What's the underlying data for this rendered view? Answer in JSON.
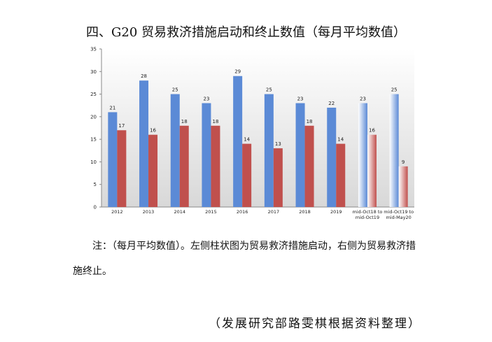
{
  "title": "四、G20 贸易救济措施启动和终止数值（每月平均数值）",
  "chart_data": {
    "type": "bar",
    "categories": [
      "2012",
      "2013",
      "2014",
      "2015",
      "2016",
      "2017",
      "2018",
      "2019",
      "mid-Oct18 to mid-Oct19",
      "mid-Oct19 to mid-May20"
    ],
    "series": [
      {
        "color": "#5b8ad6",
        "values": [
          21,
          28,
          25,
          23,
          29,
          25,
          23,
          22,
          23,
          25
        ]
      },
      {
        "color": "#c0504d",
        "values": [
          17,
          16,
          18,
          18,
          14,
          13,
          18,
          14,
          16,
          9
        ]
      }
    ],
    "ylim": [
      0,
      35
    ],
    "yticks": [
      0,
      5,
      10,
      15,
      20,
      25,
      30,
      35
    ],
    "grid": false
  },
  "note": "注：（每月平均数值）。左侧柱状图为贸易救济措施启动，右侧为贸易救济措施终止。",
  "source": "（发展研究部路雯棋根据资料整理）"
}
